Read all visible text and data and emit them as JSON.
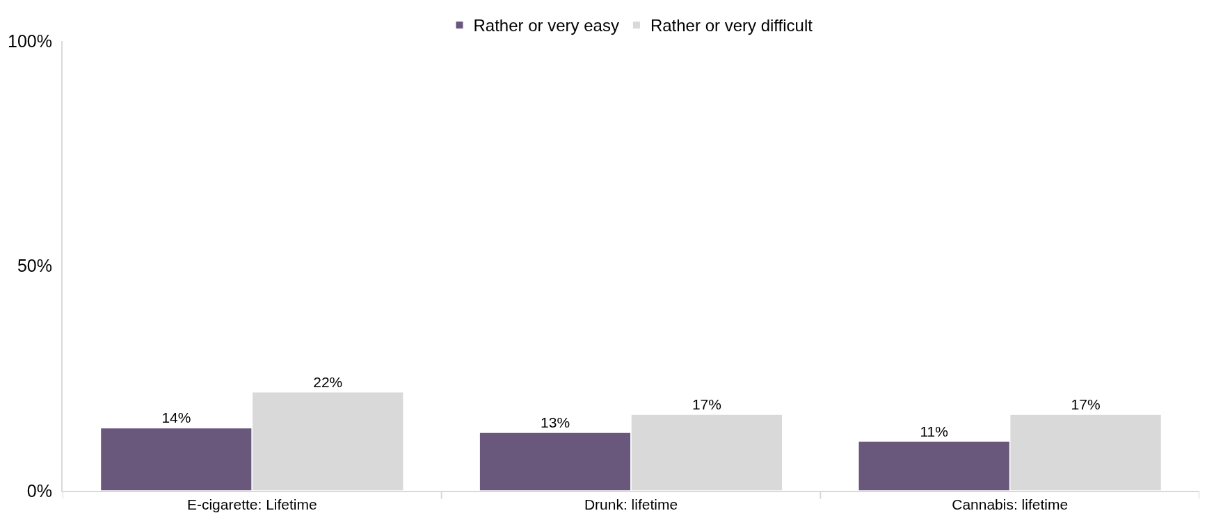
{
  "chart_data": {
    "type": "bar",
    "categories": [
      "E-cigarette: Lifetime",
      "Drunk: lifetime",
      "Cannabis: lifetime"
    ],
    "series": [
      {
        "name": "Rather or very easy",
        "color": "#69577c",
        "values": [
          14,
          13,
          11
        ],
        "value_labels": [
          "14%",
          "13%",
          "11%"
        ]
      },
      {
        "name": "Rather or very difficult",
        "color": "#d9d9d9",
        "values": [
          22,
          17,
          17
        ],
        "value_labels": [
          "22%",
          "17%",
          "17%"
        ]
      }
    ],
    "ylim": [
      0,
      100
    ],
    "yticks": [
      {
        "value": 0,
        "label": "0%"
      },
      {
        "value": 50,
        "label": "50%"
      },
      {
        "value": 100,
        "label": "100%"
      }
    ],
    "grid": false,
    "legend": "top"
  }
}
